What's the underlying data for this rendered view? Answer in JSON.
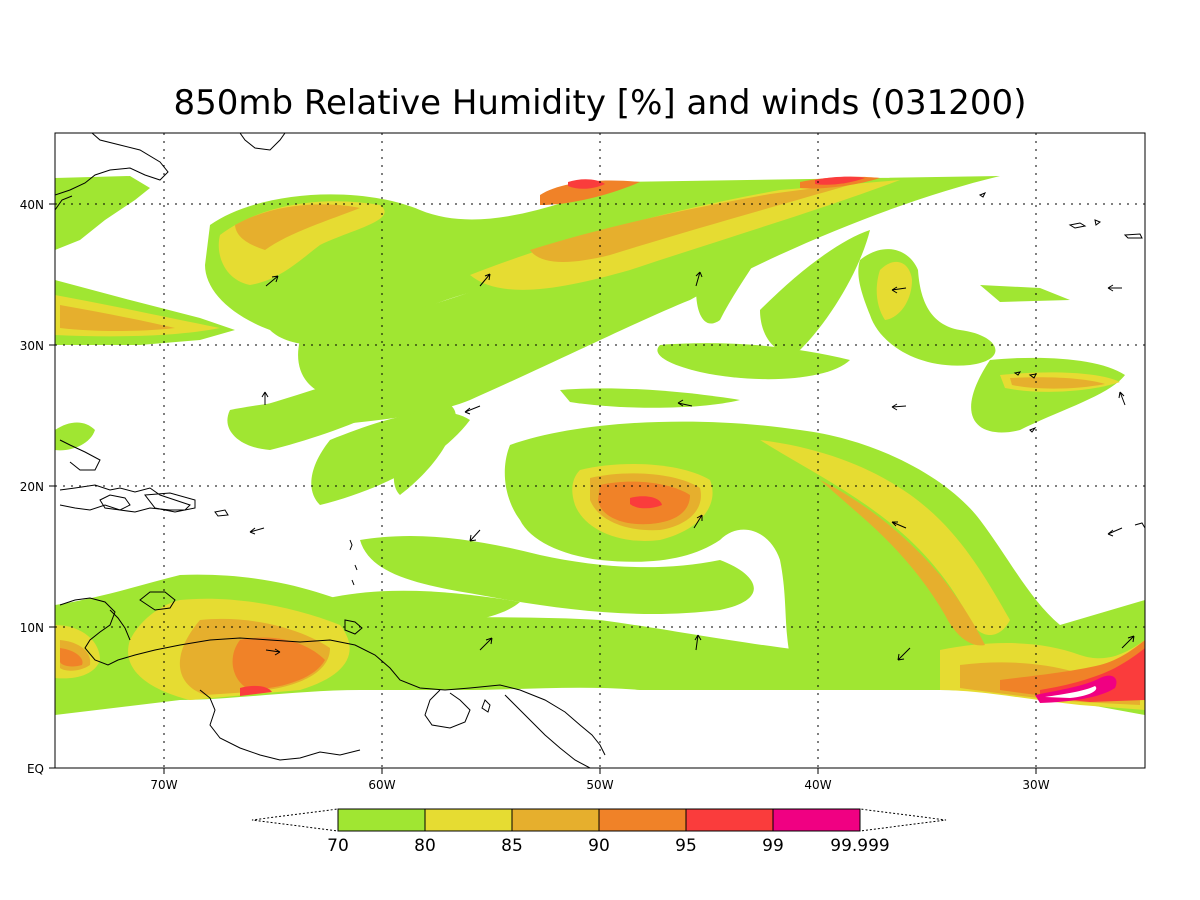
{
  "title": "850mb Relative Humidity [%] and winds (031200)",
  "axes": {
    "x_ticks": [
      {
        "value": -70,
        "label": "70W"
      },
      {
        "value": -60,
        "label": "60W"
      },
      {
        "value": -50,
        "label": "50W"
      },
      {
        "value": -40,
        "label": "40W"
      },
      {
        "value": -30,
        "label": "30W"
      }
    ],
    "y_ticks": [
      {
        "value": 0,
        "label": "EQ"
      },
      {
        "value": 10,
        "label": "10N"
      },
      {
        "value": 20,
        "label": "20N"
      },
      {
        "value": 30,
        "label": "30N"
      },
      {
        "value": 40,
        "label": "40N"
      }
    ],
    "lon_range": [
      -75,
      -25
    ],
    "lat_range": [
      0,
      45
    ],
    "grid": "dotted"
  },
  "colorbar": {
    "labels": [
      "70",
      "80",
      "85",
      "90",
      "95",
      "99",
      "99.999"
    ],
    "colors": [
      "#a0e632",
      "#e6dc32",
      "#e6af2d",
      "#f08228",
      "#fa3c3c",
      "#f00082"
    ]
  },
  "chart_data": {
    "type": "heatmap",
    "title": "850mb Relative Humidity [%] and winds (031200)",
    "variable_unit": "%",
    "contour_levels": [
      70,
      80,
      85,
      90,
      95,
      99,
      99.999
    ],
    "lon_range": [
      -75,
      -25
    ],
    "lat_range": [
      0,
      45
    ],
    "features": [
      {
        "name": "tropical cyclone moist core",
        "center_lon": -48,
        "center_lat": 19,
        "max_rh_level": 95
      },
      {
        "name": "ITCZ moist band",
        "lat_range": [
          4,
          11
        ],
        "max_rh_level": 99.999
      }
    ]
  }
}
